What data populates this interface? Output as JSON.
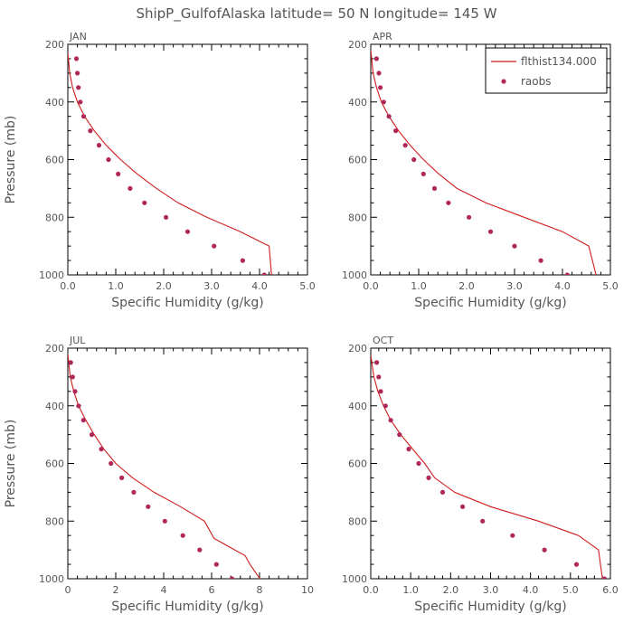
{
  "title": "ShipP_GulfofAlaska   latitude= 50 N longitude= 145 W",
  "colors": {
    "model": "#d01c1c",
    "obs": "#b0285a",
    "text": "#555555",
    "axis": "#000000"
  },
  "legend": {
    "model": "flthist134.000",
    "obs": "raobs",
    "panel": "APR",
    "placement": "top-right"
  },
  "chart_data": [
    {
      "type": "line",
      "panel": "JAN",
      "xlabel": "Specific Humidity (g/kg)",
      "ylabel": "Pressure (mb)",
      "xlim": [
        0,
        5
      ],
      "ylim": [
        200,
        1000
      ],
      "x_ticks": [
        "0.0",
        "1.0",
        "2.0",
        "3.0",
        "4.0",
        "5.0"
      ],
      "y_ticks": [
        "200",
        "400",
        "600",
        "800",
        "1000"
      ],
      "series": [
        {
          "name": "flthist134.000",
          "kind": "line",
          "x": [
            0.0,
            0.04,
            0.1,
            0.2,
            0.35,
            0.55,
            0.8,
            1.1,
            1.45,
            1.85,
            2.3,
            2.9,
            3.6,
            4.2,
            4.25
          ],
          "y": [
            230,
            300,
            350,
            400,
            450,
            500,
            550,
            600,
            650,
            700,
            750,
            800,
            850,
            900,
            1000
          ]
        },
        {
          "name": "raobs",
          "kind": "scatter",
          "x": [
            0.18,
            0.2,
            0.22,
            0.26,
            0.33,
            0.47,
            0.65,
            0.85,
            1.05,
            1.3,
            1.6,
            2.05,
            2.5,
            3.05,
            3.65,
            4.1
          ],
          "y": [
            250,
            300,
            350,
            400,
            450,
            500,
            550,
            600,
            650,
            700,
            750,
            800,
            850,
            900,
            950,
            1000
          ]
        }
      ]
    },
    {
      "type": "line",
      "panel": "APR",
      "xlabel": "Specific Humidity (g/kg)",
      "ylabel": "Pressure (mb)",
      "xlim": [
        0,
        5
      ],
      "ylim": [
        200,
        1000
      ],
      "x_ticks": [
        "0.0",
        "1.0",
        "2.0",
        "3.0",
        "4.0",
        "5.0"
      ],
      "y_ticks": [
        "200",
        "400",
        "600",
        "800",
        "1000"
      ],
      "series": [
        {
          "name": "flthist134.000",
          "kind": "line",
          "x": [
            0.0,
            0.05,
            0.12,
            0.22,
            0.38,
            0.58,
            0.82,
            1.1,
            1.42,
            1.8,
            2.4,
            3.2,
            4.0,
            4.55,
            4.7
          ],
          "y": [
            220,
            300,
            350,
            400,
            450,
            500,
            550,
            600,
            650,
            700,
            750,
            800,
            850,
            900,
            1000
          ]
        },
        {
          "name": "raobs",
          "kind": "scatter",
          "x": [
            0.12,
            0.17,
            0.2,
            0.27,
            0.38,
            0.52,
            0.72,
            0.9,
            1.1,
            1.33,
            1.62,
            2.05,
            2.5,
            3.0,
            3.55,
            4.1
          ],
          "y": [
            250,
            300,
            350,
            400,
            450,
            500,
            550,
            600,
            650,
            700,
            750,
            800,
            850,
            900,
            950,
            1000
          ]
        }
      ]
    },
    {
      "type": "line",
      "panel": "JUL",
      "xlabel": "Specific Humidity (g/kg)",
      "ylabel": "Pressure (mb)",
      "xlim": [
        0,
        10
      ],
      "ylim": [
        200,
        1000
      ],
      "x_ticks": [
        "0",
        "2",
        "4",
        "6",
        "8",
        "10"
      ],
      "y_ticks": [
        "200",
        "400",
        "600",
        "800",
        "1000"
      ],
      "series": [
        {
          "name": "flthist134.000",
          "kind": "line",
          "x": [
            0.0,
            0.1,
            0.25,
            0.45,
            0.75,
            1.1,
            1.5,
            2.0,
            2.7,
            3.6,
            4.7,
            5.7,
            6.1,
            7.4,
            7.6,
            8.1
          ],
          "y": [
            220,
            300,
            350,
            400,
            450,
            500,
            550,
            600,
            650,
            700,
            750,
            800,
            860,
            920,
            950,
            1010
          ]
        },
        {
          "name": "raobs",
          "kind": "scatter",
          "x": [
            0.12,
            0.2,
            0.3,
            0.45,
            0.65,
            1.0,
            1.4,
            1.8,
            2.25,
            2.75,
            3.35,
            4.05,
            4.8,
            5.5,
            6.2,
            6.85
          ],
          "y": [
            250,
            300,
            350,
            400,
            450,
            500,
            550,
            600,
            650,
            700,
            750,
            800,
            850,
            900,
            950,
            1000
          ]
        }
      ]
    },
    {
      "type": "line",
      "panel": "OCT",
      "xlabel": "Specific Humidity (g/kg)",
      "ylabel": "Pressure (mb)",
      "xlim": [
        0,
        6
      ],
      "ylim": [
        200,
        1000
      ],
      "x_ticks": [
        "0.0",
        "1.0",
        "2.0",
        "3.0",
        "4.0",
        "5.0",
        "6.0"
      ],
      "y_ticks": [
        "200",
        "400",
        "600",
        "800",
        "1000"
      ],
      "series": [
        {
          "name": "flthist134.000",
          "kind": "line",
          "x": [
            0.0,
            0.08,
            0.18,
            0.32,
            0.5,
            0.75,
            1.05,
            1.35,
            1.6,
            2.1,
            3.0,
            4.2,
            5.2,
            5.7,
            5.8
          ],
          "y": [
            225,
            300,
            350,
            400,
            450,
            500,
            550,
            600,
            650,
            700,
            750,
            800,
            850,
            900,
            1000
          ]
        },
        {
          "name": "raobs",
          "kind": "scatter",
          "x": [
            0.15,
            0.2,
            0.25,
            0.37,
            0.5,
            0.72,
            0.95,
            1.2,
            1.45,
            1.8,
            2.3,
            2.8,
            3.55,
            4.35,
            5.15,
            5.85
          ],
          "y": [
            250,
            300,
            350,
            400,
            450,
            500,
            550,
            600,
            650,
            700,
            750,
            800,
            850,
            900,
            950,
            1000
          ]
        }
      ]
    }
  ]
}
